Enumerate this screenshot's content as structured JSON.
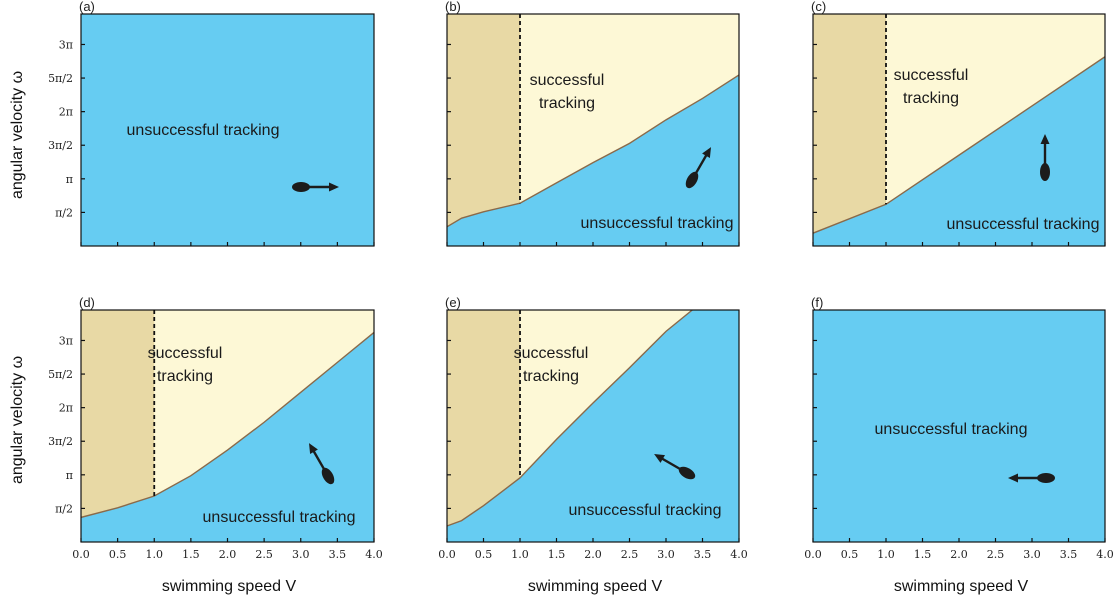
{
  "figure": {
    "y_axis_title": "angular velocity ω",
    "x_axis_title": "swimming speed V"
  },
  "colors": {
    "unsuccessful": "#66ccf2",
    "successful": "#fdf8d6",
    "infeasible": "#e8d9a5",
    "boundary": "#8a6a4a",
    "swimmer": "#1c1c1c"
  },
  "chart_data": [
    {
      "panel": "(a)",
      "type": "area",
      "xlim": [
        0,
        4
      ],
      "ylim": [
        0,
        10.85
      ],
      "y_ticks": [
        "π/2",
        "π",
        "3π/2",
        "2π",
        "5π/2",
        "3π"
      ],
      "y_tick_values": [
        1.5708,
        3.1416,
        4.7124,
        6.2832,
        7.854,
        9.4248
      ],
      "x_ticks": [
        "0.0",
        "0.5",
        "1.0",
        "1.5",
        "2.0",
        "2.5",
        "3.0",
        "3.5",
        "4.0"
      ],
      "x_tick_values": [
        0,
        0.5,
        1,
        1.5,
        2,
        2.5,
        3,
        3.5,
        4
      ],
      "show_y_tick_labels": true,
      "show_x_tick_labels": false,
      "boundary": null,
      "labels": [
        {
          "text": "unsuccessful tracking",
          "region": "unsuccessful"
        }
      ],
      "swimmer_heading_deg": 0
    },
    {
      "panel": "(b)",
      "type": "area",
      "xlim": [
        0,
        4
      ],
      "ylim": [
        0,
        10.85
      ],
      "y_ticks": [
        "π/2",
        "π",
        "3π/2",
        "2π",
        "5π/2",
        "3π"
      ],
      "y_tick_values": [
        1.5708,
        3.1416,
        4.7124,
        6.2832,
        7.854,
        9.4248
      ],
      "x_ticks": [
        "0.0",
        "0.5",
        "1.0",
        "1.5",
        "2.0",
        "2.5",
        "3.0",
        "3.5",
        "4.0"
      ],
      "x_tick_values": [
        0,
        0.5,
        1,
        1.5,
        2,
        2.5,
        3,
        3.5,
        4
      ],
      "show_y_tick_labels": false,
      "show_x_tick_labels": false,
      "critical_speed": 1.0,
      "boundary": {
        "x": [
          0,
          0.2,
          0.5,
          1.0,
          1.5,
          2.0,
          2.5,
          3.0,
          3.5,
          4.0
        ],
        "y": [
          0.9,
          1.3,
          1.6,
          2.0,
          2.95,
          3.9,
          4.8,
          5.9,
          6.9,
          8.0
        ]
      },
      "labels": [
        {
          "text": "successful",
          "region": "successful"
        },
        {
          "text": "tracking",
          "region": "successful"
        },
        {
          "text": "unsuccessful tracking",
          "region": "unsuccessful"
        }
      ],
      "swimmer_heading_deg": 60
    },
    {
      "panel": "(c)",
      "type": "area",
      "xlim": [
        0,
        4
      ],
      "ylim": [
        0,
        10.85
      ],
      "y_ticks": [
        "π/2",
        "π",
        "3π/2",
        "2π",
        "5π/2",
        "3π"
      ],
      "y_tick_values": [
        1.5708,
        3.1416,
        4.7124,
        6.2832,
        7.854,
        9.4248
      ],
      "x_ticks": [
        "0.0",
        "0.5",
        "1.0",
        "1.5",
        "2.0",
        "2.5",
        "3.0",
        "3.5",
        "4.0"
      ],
      "x_tick_values": [
        0,
        0.5,
        1,
        1.5,
        2,
        2.5,
        3,
        3.5,
        4
      ],
      "show_y_tick_labels": false,
      "show_x_tick_labels": false,
      "critical_speed": 1.0,
      "boundary": {
        "x": [
          0,
          1.0,
          2.0,
          3.0,
          4.0
        ],
        "y": [
          0.6,
          1.95,
          4.25,
          6.55,
          8.85
        ]
      },
      "labels": [
        {
          "text": "successful",
          "region": "successful"
        },
        {
          "text": "tracking",
          "region": "successful"
        },
        {
          "text": "unsuccessful tracking",
          "region": "unsuccessful"
        }
      ],
      "swimmer_heading_deg": 90
    },
    {
      "panel": "(d)",
      "type": "area",
      "xlim": [
        0,
        4
      ],
      "ylim": [
        0,
        10.85
      ],
      "y_ticks": [
        "π/2",
        "π",
        "3π/2",
        "2π",
        "5π/2",
        "3π"
      ],
      "y_tick_values": [
        1.5708,
        3.1416,
        4.7124,
        6.2832,
        7.854,
        9.4248
      ],
      "x_ticks": [
        "0.0",
        "0.5",
        "1.0",
        "1.5",
        "2.0",
        "2.5",
        "3.0",
        "3.5",
        "4.0"
      ],
      "x_tick_values": [
        0,
        0.5,
        1,
        1.5,
        2,
        2.5,
        3,
        3.5,
        4
      ],
      "show_y_tick_labels": true,
      "show_x_tick_labels": true,
      "critical_speed": 1.0,
      "boundary": {
        "x": [
          0,
          0.5,
          1.0,
          1.5,
          2.0,
          2.5,
          3.0,
          3.5,
          4.0
        ],
        "y": [
          1.15,
          1.6,
          2.15,
          3.1,
          4.3,
          5.6,
          7.0,
          8.4,
          9.8
        ]
      },
      "labels": [
        {
          "text": "successful",
          "region": "successful"
        },
        {
          "text": "tracking",
          "region": "successful"
        },
        {
          "text": "unsuccessful tracking",
          "region": "unsuccessful"
        }
      ],
      "swimmer_heading_deg": 120
    },
    {
      "panel": "(e)",
      "type": "area",
      "xlim": [
        0,
        4
      ],
      "ylim": [
        0,
        10.85
      ],
      "y_ticks": [
        "π/2",
        "π",
        "3π/2",
        "2π",
        "5π/2",
        "3π"
      ],
      "y_tick_values": [
        1.5708,
        3.1416,
        4.7124,
        6.2832,
        7.854,
        9.4248
      ],
      "x_ticks": [
        "0.0",
        "0.5",
        "1.0",
        "1.5",
        "2.0",
        "2.5",
        "3.0",
        "3.5",
        "4.0"
      ],
      "x_tick_values": [
        0,
        0.5,
        1,
        1.5,
        2,
        2.5,
        3,
        3.5,
        4
      ],
      "show_y_tick_labels": false,
      "show_x_tick_labels": true,
      "critical_speed": 1.0,
      "boundary": {
        "x": [
          0,
          0.2,
          0.5,
          1.0,
          1.5,
          2.0,
          2.5,
          3.0,
          3.36
        ],
        "y": [
          0.75,
          1.0,
          1.7,
          3.0,
          4.8,
          6.5,
          8.15,
          9.85,
          10.85
        ]
      },
      "labels": [
        {
          "text": "successful",
          "region": "successful"
        },
        {
          "text": "tracking",
          "region": "successful"
        },
        {
          "text": "unsuccessful tracking",
          "region": "unsuccessful"
        }
      ],
      "swimmer_heading_deg": 150
    },
    {
      "panel": "(f)",
      "type": "area",
      "xlim": [
        0,
        4
      ],
      "ylim": [
        0,
        10.85
      ],
      "y_ticks": [
        "π/2",
        "π",
        "3π/2",
        "2π",
        "5π/2",
        "3π"
      ],
      "y_tick_values": [
        1.5708,
        3.1416,
        4.7124,
        6.2832,
        7.854,
        9.4248
      ],
      "x_ticks": [
        "0.0",
        "0.5",
        "1.0",
        "1.5",
        "2.0",
        "2.5",
        "3.0",
        "3.5",
        "4.0"
      ],
      "x_tick_values": [
        0,
        0.5,
        1,
        1.5,
        2,
        2.5,
        3,
        3.5,
        4
      ],
      "show_y_tick_labels": false,
      "show_x_tick_labels": true,
      "boundary": null,
      "labels": [
        {
          "text": "unsuccessful tracking",
          "region": "unsuccessful"
        }
      ],
      "swimmer_heading_deg": 180
    }
  ]
}
